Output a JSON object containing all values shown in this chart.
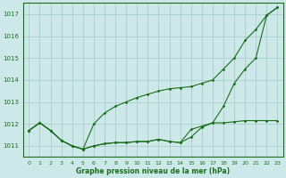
{
  "title": "Graphe pression niveau de la mer (hPa)",
  "background_color": "#cce8e8",
  "grid_color": "#aacccc",
  "line_color": "#1a6e1a",
  "xlim": [
    -0.5,
    23.5
  ],
  "ylim": [
    1010.5,
    1017.5
  ],
  "yticks": [
    1011,
    1012,
    1013,
    1014,
    1015,
    1016,
    1017
  ],
  "xticks": [
    0,
    1,
    2,
    3,
    4,
    5,
    6,
    7,
    8,
    9,
    10,
    11,
    12,
    13,
    14,
    15,
    16,
    17,
    18,
    19,
    20,
    21,
    22,
    23
  ],
  "series": [
    [
      1011.7,
      1012.05,
      1011.7,
      1011.25,
      1011.0,
      1010.85,
      1011.0,
      1011.1,
      1011.15,
      1011.15,
      1011.2,
      1011.2,
      1011.3,
      1011.2,
      1011.15,
      1011.75,
      1011.9,
      1012.05,
      1012.8,
      1013.85,
      1014.5,
      1015.0,
      1016.95,
      1017.3
    ],
    [
      1011.7,
      1012.05,
      1011.7,
      1011.25,
      1011.0,
      1010.85,
      1012.0,
      1012.5,
      1012.8,
      1013.0,
      1013.2,
      1013.35,
      1013.5,
      1013.6,
      1013.65,
      1013.7,
      1013.85,
      1014.0,
      1014.5,
      1015.0,
      1015.8,
      1016.3,
      1016.95,
      1017.3
    ],
    [
      1011.7,
      1012.05,
      1011.7,
      1011.25,
      1011.0,
      1010.85,
      1011.0,
      1011.1,
      1011.15,
      1011.15,
      1011.2,
      1011.2,
      1011.3,
      1011.2,
      1011.15,
      1011.4,
      1011.85,
      1012.05,
      1012.05,
      1012.1,
      1012.15,
      1012.15,
      1012.15,
      1012.15
    ]
  ]
}
